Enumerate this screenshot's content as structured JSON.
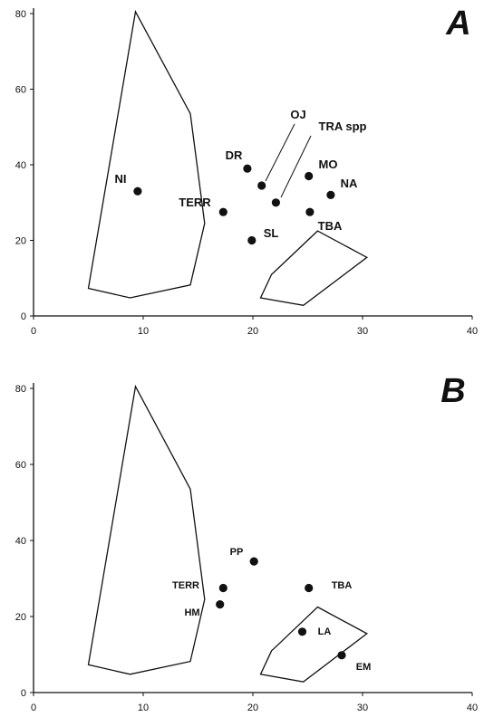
{
  "chart_data": [
    {
      "type": "scatter",
      "panel_label": "A",
      "xlim": [
        0,
        40
      ],
      "ylim": [
        0,
        80
      ],
      "x_ticks": [
        "0",
        "10",
        "20",
        "30",
        "40"
      ],
      "y_ticks": [
        "0",
        "20",
        "40",
        "60",
        "80"
      ],
      "grid": false,
      "points": [
        {
          "label": "NI",
          "x": 9.5,
          "y": 33
        },
        {
          "label": "DR",
          "x": 19.5,
          "y": 39
        },
        {
          "label": "OJ",
          "x": 20.8,
          "y": 34.5
        },
        {
          "label": "TRA spp",
          "x": 22.1,
          "y": 30
        },
        {
          "label": "MO",
          "x": 25.1,
          "y": 37
        },
        {
          "label": "NA",
          "x": 27.1,
          "y": 32
        },
        {
          "label": "TERR",
          "x": 17.3,
          "y": 27.5
        },
        {
          "label": "TBA",
          "x": 25.2,
          "y": 27.5
        },
        {
          "label": "SL",
          "x": 19.9,
          "y": 20
        }
      ],
      "polygons": [
        {
          "vertices": [
            [
              9.3,
              80.5
            ],
            [
              14.3,
              53.5
            ],
            [
              15.6,
              24.5
            ],
            [
              14.3,
              8.2
            ],
            [
              8.8,
              4.8
            ],
            [
              5.0,
              7.3
            ]
          ]
        },
        {
          "vertices": [
            [
              25.9,
              22.5
            ],
            [
              30.4,
              15.5
            ],
            [
              24.6,
              2.8
            ],
            [
              20.7,
              4.8
            ],
            [
              21.7,
              11.0
            ],
            [
              21.9,
              11.5
            ]
          ]
        }
      ]
    },
    {
      "type": "scatter",
      "panel_label": "B",
      "xlim": [
        0,
        40
      ],
      "ylim": [
        0,
        80
      ],
      "x_ticks": [
        "0",
        "10",
        "20",
        "30",
        "40"
      ],
      "y_ticks": [
        "0",
        "20",
        "40",
        "60",
        "80"
      ],
      "grid": false,
      "points": [
        {
          "label": "PP",
          "x": 20.1,
          "y": 34.5
        },
        {
          "label": "TERR",
          "x": 17.3,
          "y": 27.5
        },
        {
          "label": "HM",
          "x": 17.0,
          "y": 23.2
        },
        {
          "label": "TBA",
          "x": 25.1,
          "y": 27.5
        },
        {
          "label": "LA",
          "x": 24.5,
          "y": 16
        },
        {
          "label": "EM",
          "x": 28.1,
          "y": 9.8
        }
      ],
      "polygons": [
        {
          "vertices": [
            [
              9.3,
              80.5
            ],
            [
              14.3,
              53.5
            ],
            [
              15.6,
              24.5
            ],
            [
              14.3,
              8.2
            ],
            [
              8.8,
              4.8
            ],
            [
              5.0,
              7.3
            ]
          ]
        },
        {
          "vertices": [
            [
              25.9,
              22.5
            ],
            [
              30.4,
              15.5
            ],
            [
              24.6,
              2.8
            ],
            [
              20.7,
              4.8
            ],
            [
              21.7,
              11.0
            ],
            [
              21.9,
              11.5
            ]
          ]
        }
      ]
    }
  ]
}
